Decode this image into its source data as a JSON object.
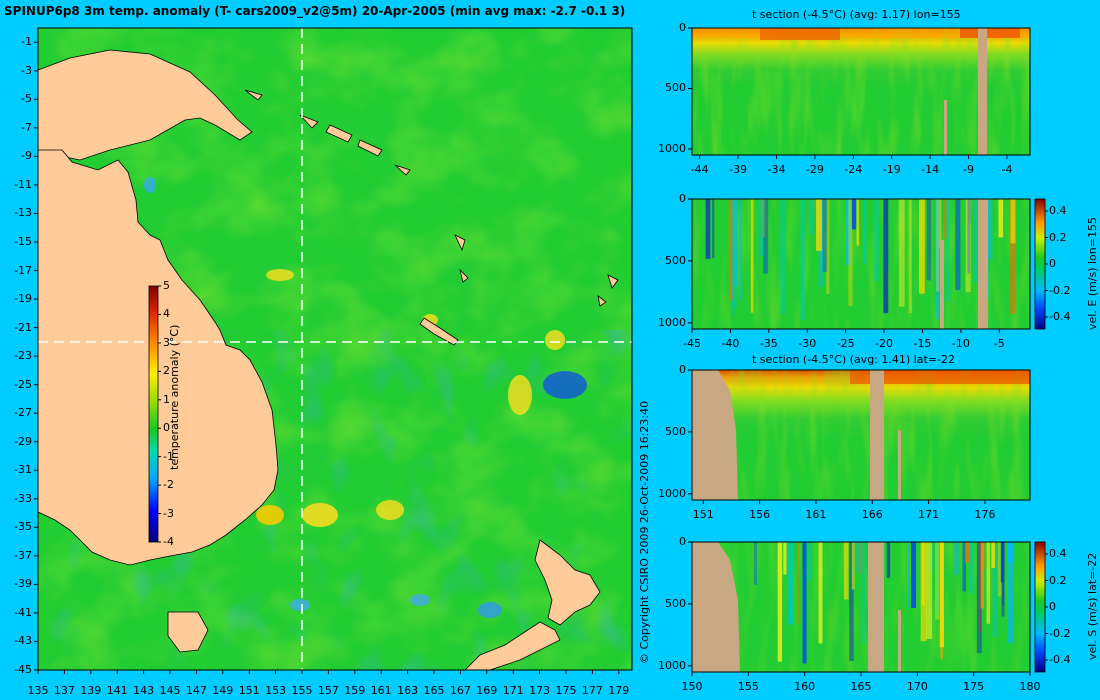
{
  "figure_title": "SPINUP6p8 3m temp. anomaly (T- cars2009_v2@5m) 20-Apr-2005 (min avg max: -2.7 -0.1 3)",
  "copyright": "© Copyright CSIRO 2009   26-Oct-2009 16:23:40",
  "colors": {
    "background": "#00ccff",
    "land": "#ffcc99",
    "section_land": "#c8a882",
    "anomaly_base": "#22cc33"
  },
  "chart_data": [
    {
      "type": "heatmap",
      "id": "map",
      "title": "SPINUP6p8 3m temp. anomaly (T- cars2009_v2@5m) 20-Apr-2005 (min avg max: -2.7 -0.1 3)",
      "xlabel": "",
      "ylabel": "",
      "xlim": [
        135,
        180
      ],
      "ylim": [
        -45,
        0
      ],
      "xticks": [
        "135",
        "137",
        "139",
        "141",
        "143",
        "145",
        "147",
        "149",
        "151",
        "153",
        "155",
        "157",
        "159",
        "161",
        "163",
        "165",
        "167",
        "169",
        "171",
        "173",
        "175",
        "177",
        "179"
      ],
      "yticks": [
        "-1",
        "-3",
        "-5",
        "-7",
        "-9",
        "-11",
        "-13",
        "-15",
        "-17",
        "-19",
        "-21",
        "-23",
        "-25",
        "-27",
        "-29",
        "-31",
        "-33",
        "-35",
        "-37",
        "-39",
        "-41",
        "-43",
        "-45"
      ],
      "section_lon": 155,
      "section_lat": -22,
      "colorbar": {
        "label": "temperature anomaly (°C)",
        "ticks": [
          "5",
          "4",
          "3",
          "2",
          "1",
          "0",
          "-1",
          "-2",
          "-3",
          "-4"
        ],
        "range": [
          -4,
          5
        ]
      }
    },
    {
      "type": "heatmap",
      "id": "t_section_lon",
      "title": "t section (-4.5°C) (avg: 1.17) lon=155",
      "xlim": [
        -45,
        -1
      ],
      "ylim": [
        1050,
        0
      ],
      "xticks": [
        "-44",
        "-39",
        "-34",
        "-29",
        "-24",
        "-19",
        "-14",
        "-9",
        "-4"
      ],
      "yticks": [
        "0",
        "500",
        "1000"
      ]
    },
    {
      "type": "heatmap",
      "id": "vel_e_section",
      "title": "",
      "xlim": [
        -45,
        -1
      ],
      "ylim": [
        1050,
        0
      ],
      "xticks": [
        "-45",
        "-40",
        "-35",
        "-30",
        "-25",
        "-20",
        "-15",
        "-10",
        "-5"
      ],
      "yticks": [
        "0",
        "500",
        "1000"
      ],
      "colorbar": {
        "label": "vel. E (m/s) lon=155",
        "ticks": [
          "0.4",
          "0.2",
          "0",
          "-0.2",
          "-0.4"
        ]
      }
    },
    {
      "type": "heatmap",
      "id": "t_section_lat",
      "title": "t section (-4.5°C) (avg: 1.41) lat=-22",
      "xlim": [
        150,
        180
      ],
      "ylim": [
        1050,
        0
      ],
      "xticks": [
        "151",
        "156",
        "161",
        "166",
        "171",
        "176"
      ],
      "yticks": [
        "0",
        "500",
        "1000"
      ]
    },
    {
      "type": "heatmap",
      "id": "vel_s_section",
      "title": "",
      "xlim": [
        150,
        180
      ],
      "ylim": [
        1050,
        0
      ],
      "xticks": [
        "150",
        "155",
        "160",
        "165",
        "170",
        "175",
        "180"
      ],
      "yticks": [
        "0",
        "500",
        "1000"
      ],
      "colorbar": {
        "label": "vel. S (m/s) lat=-22",
        "ticks": [
          "0.4",
          "0.2",
          "0",
          "-0.2",
          "-0.4"
        ]
      }
    }
  ]
}
